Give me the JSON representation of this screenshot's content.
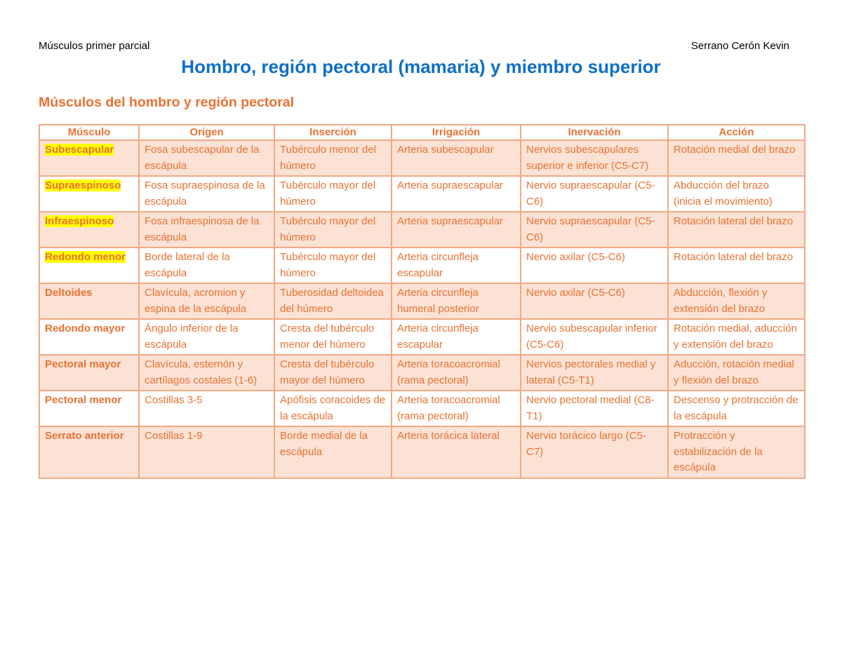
{
  "header": {
    "left": "Músculos primer parcial",
    "right": "Serrano Cerón Kevin"
  },
  "title": "Hombro, región pectoral (mamaria) y miembro superior",
  "section_title": "Músculos del hombro y región pectoral",
  "colors": {
    "title": "#0f6fc6",
    "accent": "#e97132",
    "row_shade": "#fbe2d5",
    "highlight": "#ffff00"
  },
  "table": {
    "columns": [
      "Músculo",
      "Origen",
      "Inserción",
      "Irrigación",
      "Inervación",
      "Acción"
    ],
    "rows": [
      {
        "musculo": "Subescapular",
        "highlighted": true,
        "origen": "Fosa subescapular de la escápula",
        "insercion": "Tubérculo menor del húmero",
        "irrigacion": "Arteria subescapular",
        "inervacion": "Nervios subescapulares superior e inferior (C5-C7)",
        "accion": "Rotación medial del brazo"
      },
      {
        "musculo": "Supraespinoso",
        "highlighted": true,
        "origen": "Fosa supraespinosa de la escápula",
        "insercion": "Tubérculo mayor del húmero",
        "irrigacion": "Arteria supraescapular",
        "inervacion": "Nervio supraescapular (C5-C6)",
        "accion": "Abducción del brazo (inicia el movimiento)"
      },
      {
        "musculo": "Infraespinoso",
        "highlighted": true,
        "origen": "Fosa infraespinosa de la escápula",
        "insercion": "Tubérculo mayor del húmero",
        "irrigacion": "Arteria supraescapular",
        "inervacion": "Nervio supraescapular (C5-C6)",
        "accion": "Rotación lateral del brazo"
      },
      {
        "musculo": "Redondo menor",
        "highlighted": true,
        "origen": "Borde lateral de la escápula",
        "insercion": "Tubérculo mayor del húmero",
        "irrigacion": "Arteria circunfleja escapular",
        "inervacion": "Nervio axilar (C5-C6)",
        "accion": "Rotación lateral del brazo"
      },
      {
        "musculo": "Deltoides",
        "highlighted": false,
        "origen": "Clavícula, acromion y espina de la escápula",
        "insercion": "Tuberosidad deltoidea del húmero",
        "irrigacion": "Arteria circunfleja humeral posterior",
        "inervacion": "Nervio axilar (C5-C6)",
        "accion": "Abducción, flexión y extensión del brazo"
      },
      {
        "musculo": "Redondo mayor",
        "highlighted": false,
        "origen": "Ángulo inferior de la escápula",
        "insercion": "Cresta del tubérculo menor del húmero",
        "irrigacion": "Arteria circunfleja escapular",
        "inervacion": "Nervio subescapular inferior (C5-C6)",
        "accion": "Rotación medial, aducción y extensión del brazo"
      },
      {
        "musculo": "Pectoral mayor",
        "highlighted": false,
        "origen": "Clavícula, esternón y cartílagos costales (1-6)",
        "insercion": "Cresta del tubérculo mayor del húmero",
        "irrigacion": "Arteria toracoacromial (rama pectoral)",
        "inervacion": "Nervios pectorales medial y lateral (C5-T1)",
        "accion": "Aducción, rotación medial y flexión del brazo"
      },
      {
        "musculo": "Pectoral menor",
        "highlighted": false,
        "origen": "Costillas 3-5",
        "insercion": "Apófisis coracoides de la escápula",
        "irrigacion": "Arteria toracoacromial (rama pectoral)",
        "inervacion": "Nervio pectoral medial (C8-T1)",
        "accion": "Descenso y protracción de la escápula"
      },
      {
        "musculo": "Serrato anterior",
        "highlighted": false,
        "origen": "Costillas 1-9",
        "insercion": "Borde medial de la escápula",
        "irrigacion": "Arteria torácica lateral",
        "inervacion": "Nervio torácico largo (C5-C7)",
        "accion": "Protracción y estabilización de la escápula"
      }
    ]
  }
}
